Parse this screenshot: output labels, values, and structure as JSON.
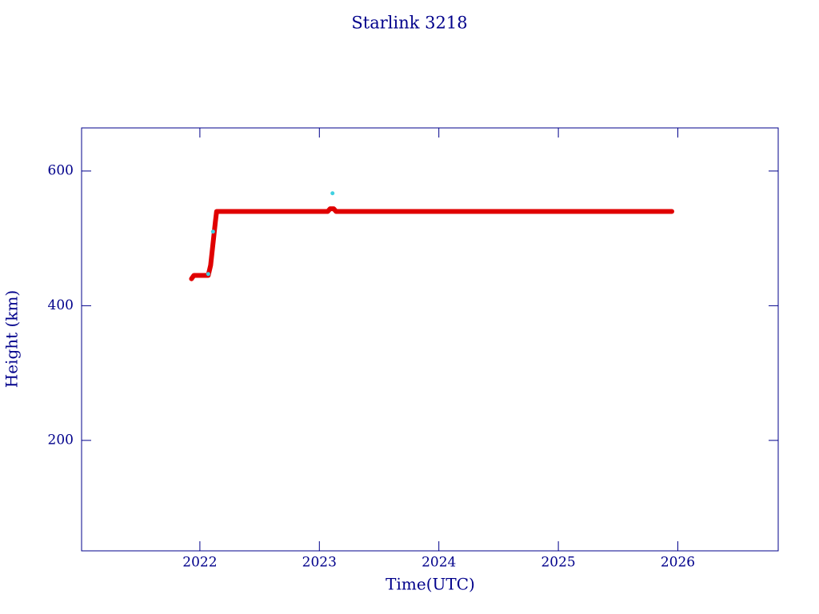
{
  "chart_data": {
    "type": "line",
    "title": "Starlink 3218",
    "x_label": "Time(UTC)",
    "y_label": "Height (km)",
    "xlim": [
      2021.01,
      2026.84
    ],
    "ylim": [
      36,
      664
    ],
    "xticks": [
      2022,
      2023,
      2024,
      2025,
      2026
    ],
    "yticks": [
      200,
      400,
      600
    ],
    "axis_color": "#00008b",
    "series": [
      {
        "color": "#e00000",
        "marker": false,
        "x": [
          2021.93,
          2021.95,
          2022.07,
          2022.09,
          2022.13,
          2022.14,
          2023.07,
          2023.09,
          2023.12,
          2023.14,
          2025.95
        ],
        "values": [
          440,
          445,
          445,
          460,
          525,
          540,
          540,
          544,
          544,
          540,
          540
        ]
      },
      {
        "color": "#40d0e0",
        "marker": true,
        "x": [
          2022.07,
          2022.11,
          2023.11
        ],
        "values": [
          447,
          510,
          567
        ]
      }
    ]
  }
}
